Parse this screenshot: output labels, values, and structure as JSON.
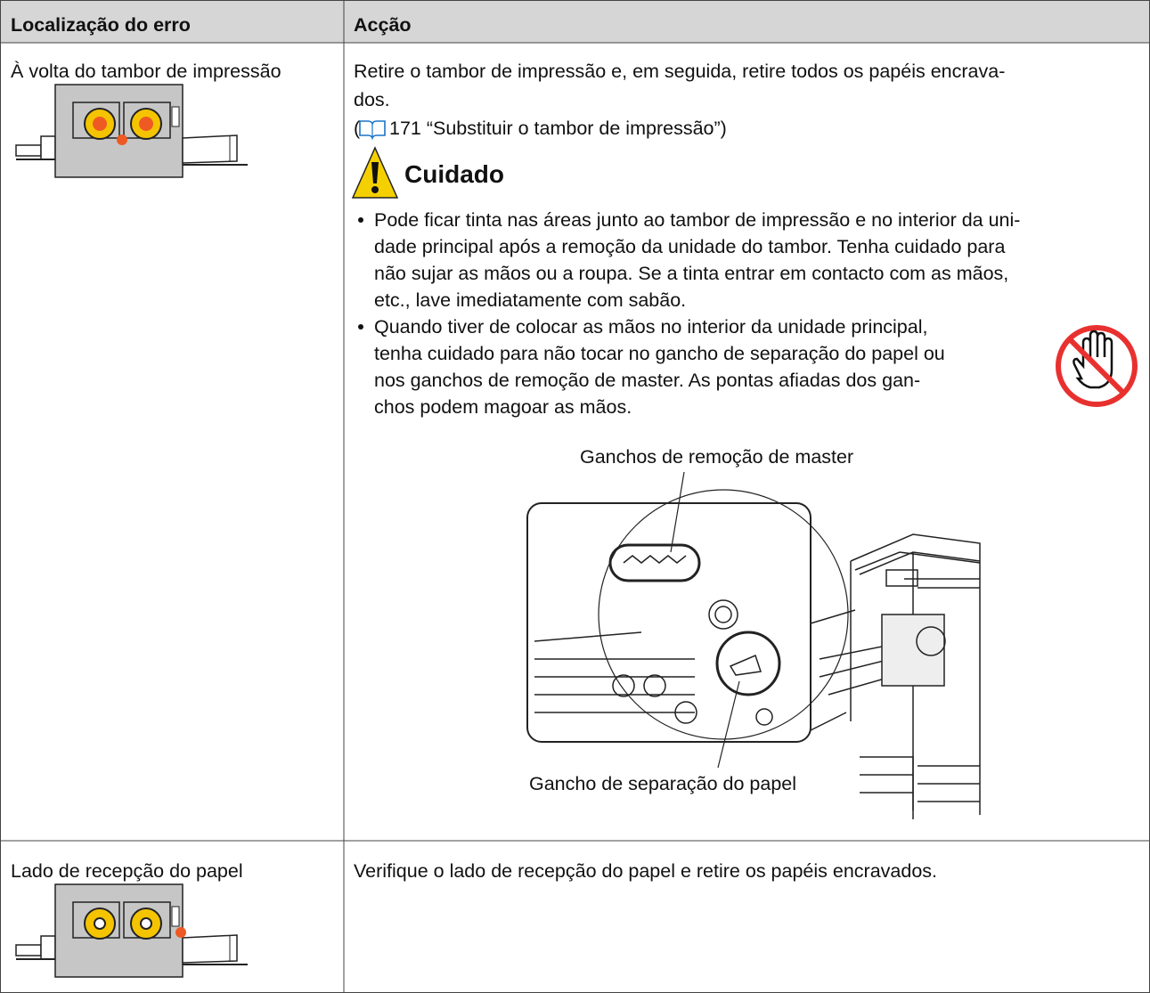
{
  "table": {
    "headers": [
      "Localização do erro",
      "Acção"
    ],
    "rows": [
      {
        "location": "À volta do tambor de impressão",
        "action": {
          "lines": [
            "Retire o tambor de impressão e, em seguida, retire todos os papéis encrava-",
            "dos."
          ],
          "ref_before": "(",
          "ref_text": "171 “Substituir o tambor de impressão”)",
          "caution": {
            "title": "Cuidado",
            "bullets": [
              [
                "Pode ficar tinta nas áreas junto ao tambor de impressão e no interior da uni-",
                "dade principal após a remoção da unidade do tambor. Tenha cuidado para",
                "não sujar as mãos ou a roupa. Se a tinta entrar em contacto com as mãos,",
                "etc., lave imediatamente com sabão."
              ],
              [
                "Quando tiver de colocar as mãos no interior da unidade principal,",
                "tenha cuidado para não tocar no gancho de separação do papel ou",
                "nos ganchos de remoção de master. As pontas afiadas dos gan-",
                "chos podem magoar as mãos."
              ]
            ]
          },
          "figure_labels": [
            "Ganchos de remoção de master",
            "Gancho de separação do papel"
          ]
        }
      },
      {
        "location": "Lado de recepção do papel",
        "action": {
          "lines": [
            "Verifique o lado de recepção do papel e retire os papéis encravados."
          ]
        }
      }
    ]
  }
}
